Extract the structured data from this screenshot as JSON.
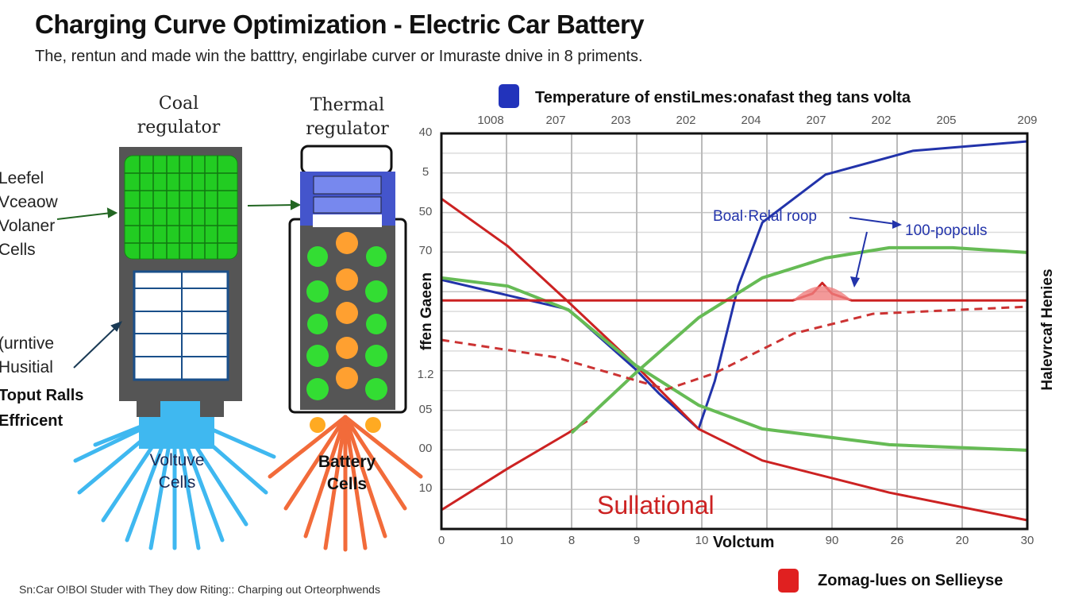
{
  "header": {
    "title": "Charging Curve Optimization - Electric Car Battery",
    "subtitle": "The, rentun and made win the batttry, engirlabe curver or  Imuraste dnive in 8 priments."
  },
  "diagram": {
    "coal_regulator_label": "Coal\nregulator",
    "thermal_regulator_label": "Thermal\nregulator",
    "left_labels": [
      "Leefel",
      "Vceaow",
      "Volaner",
      "Cells"
    ],
    "lower_labels": [
      "(urntive",
      "Husitial"
    ],
    "bold_labels": [
      "Toput Ralls",
      "Effricent"
    ],
    "voltuve_cells": "Voltuve\nCells",
    "battery_cells": "Battery\nCells",
    "colors": {
      "green_panel": "#22cc22",
      "body": "#555555",
      "blue_rays": "#3fb8f0",
      "orange_rays": "#f26b3a",
      "thermal_top": "#5566dd"
    }
  },
  "footnote": "Sn:Car O!BOl Studer with They dow Riting:: Charping out Orteorphwends",
  "chart_data": {
    "type": "line",
    "title": "Temperature of enstiLmes:onafast theg tans volta",
    "xlabel": "Volctum",
    "ylabel": "ffen Gaeen",
    "ylabel_right": "Halevrcaf Henies",
    "x_tick_labels": [
      "0",
      "10",
      "8",
      "9",
      "10",
      "",
      "90",
      "26",
      "20",
      "30"
    ],
    "x_top_tick_labels": [
      "1008",
      "207",
      "203",
      "202",
      "204",
      "207",
      "202",
      "205",
      "209"
    ],
    "y_tick_labels": [
      "40",
      "5",
      "50",
      "70",
      "",
      "",
      "1.2",
      "05",
      "00",
      "10",
      ""
    ],
    "grid": true,
    "legend": [
      {
        "name": "Temperature of enstiLmes:onafast theg tans volta",
        "color": "#2233bb",
        "placement": "top"
      },
      {
        "name": "Zomag-lues on Sellieyse",
        "color": "#e02020",
        "placement": "bottom-right"
      }
    ],
    "annotations": {
      "blue_label": "Boal·Relal roop",
      "blue_label_2": "100-popculs",
      "red_label": "Sullational"
    },
    "series": [
      {
        "color": "#2233aa",
        "style": "solid",
        "points": [
          [
            0,
            6.3
          ],
          [
            1.95,
            5.55
          ],
          [
            2.98,
            4.04
          ],
          [
            3.34,
            3.43
          ],
          [
            3.95,
            2.53
          ],
          [
            4.2,
            3.74
          ],
          [
            4.56,
            6.14
          ],
          [
            4.93,
            7.75
          ],
          [
            5.9,
            8.96
          ],
          [
            7.24,
            9.56
          ],
          [
            9,
            9.8
          ]
        ]
      },
      {
        "color": "#cc2222",
        "style": "solid",
        "points": [
          [
            0,
            8.35
          ],
          [
            1.02,
            7.15
          ],
          [
            1.95,
            5.74
          ],
          [
            2.98,
            4.14
          ],
          [
            3.95,
            2.53
          ],
          [
            4.93,
            1.73
          ],
          [
            6.88,
            0.92
          ],
          [
            9,
            0.22
          ]
        ]
      },
      {
        "color": "#cc2222",
        "style": "solid",
        "points": [
          [
            0,
            0.48
          ],
          [
            1.02,
            1.53
          ],
          [
            1.95,
            2.43
          ],
          [
            2.24,
            2.73
          ]
        ]
      },
      {
        "color": "#66bb55",
        "style": "solid",
        "points": [
          [
            2.0,
            2.43
          ],
          [
            2.98,
            3.94
          ],
          [
            3.95,
            5.34
          ],
          [
            4.93,
            6.35
          ],
          [
            5.9,
            6.85
          ],
          [
            6.88,
            7.11
          ],
          [
            7.85,
            7.11
          ],
          [
            9,
            6.99
          ]
        ]
      },
      {
        "color": "#66bb55",
        "style": "solid",
        "points": [
          [
            0,
            6.35
          ],
          [
            1.02,
            6.14
          ],
          [
            1.95,
            5.54
          ],
          [
            2.98,
            4.14
          ],
          [
            3.95,
            3.13
          ],
          [
            4.93,
            2.53
          ],
          [
            6.88,
            2.13
          ],
          [
            9,
            1.99
          ]
        ]
      },
      {
        "color": "#cc2222",
        "style": "solid",
        "points": [
          [
            0,
            5.78
          ],
          [
            5.4,
            5.78
          ],
          [
            5.7,
            5.95
          ],
          [
            5.85,
            6.22
          ],
          [
            6.0,
            5.95
          ],
          [
            6.3,
            5.78
          ],
          [
            9,
            5.78
          ]
        ]
      },
      {
        "color": "#cc3333",
        "style": "dashed",
        "points": [
          [
            0,
            4.78
          ],
          [
            1.76,
            4.34
          ],
          [
            3.46,
            3.53
          ],
          [
            4.2,
            3.94
          ],
          [
            5.41,
            4.94
          ],
          [
            6.63,
            5.44
          ],
          [
            9,
            5.62
          ]
        ]
      }
    ]
  }
}
